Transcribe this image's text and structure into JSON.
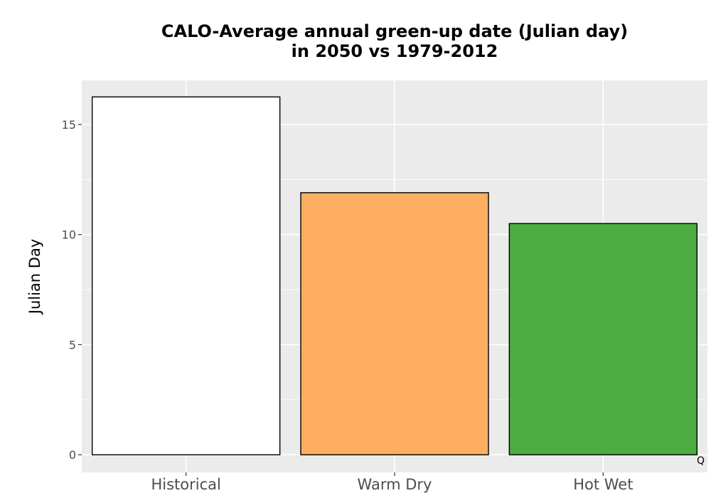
{
  "chart_data": {
    "type": "bar",
    "title": "CALO-Average annual green-up date (Julian day)",
    "subtitle": "in 2050 vs 1979-2012",
    "xlabel": "",
    "ylabel": "Julian Day",
    "categories": [
      "Historical",
      "Warm Dry",
      "Hot Wet"
    ],
    "values": [
      16.25,
      11.9,
      10.5
    ],
    "colors": [
      "#ffffff",
      "#fdae61",
      "#4dac40"
    ],
    "ylim": [
      -0.8,
      17.0
    ],
    "yticks": [
      0,
      5,
      10,
      15
    ],
    "ytick_labels": [
      "0",
      "5",
      "10",
      "15"
    ],
    "grid": true,
    "panel_color": "#ebebeb",
    "bar_outline": "#000000"
  },
  "corner_label": "Q"
}
